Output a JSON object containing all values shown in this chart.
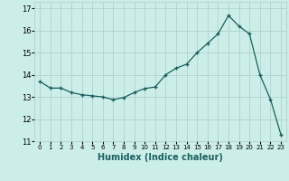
{
  "x": [
    0,
    1,
    2,
    3,
    4,
    5,
    6,
    7,
    8,
    9,
    10,
    11,
    12,
    13,
    14,
    15,
    16,
    17,
    18,
    19,
    20,
    21,
    22,
    23
  ],
  "y": [
    13.7,
    13.4,
    13.4,
    13.2,
    13.1,
    13.05,
    13.0,
    12.88,
    12.97,
    13.2,
    13.38,
    13.45,
    14.0,
    14.3,
    14.48,
    15.0,
    15.42,
    15.85,
    16.68,
    16.2,
    15.85,
    14.0,
    12.9,
    11.3
  ],
  "xlabel": "Humidex (Indice chaleur)",
  "ylabel": "",
  "xlim": [
    -0.5,
    23.5
  ],
  "ylim": [
    11,
    17.3
  ],
  "yticks": [
    11,
    12,
    13,
    14,
    15,
    16,
    17
  ],
  "xticks": [
    0,
    1,
    2,
    3,
    4,
    5,
    6,
    7,
    8,
    9,
    10,
    11,
    12,
    13,
    14,
    15,
    16,
    17,
    18,
    19,
    20,
    21,
    22,
    23
  ],
  "bg_color": "#cceee8",
  "line_color": "#1a5f5f",
  "marker_color": "#1a5f5f",
  "grid_color": "#aacccc",
  "grid_minor_color": "#c8e4e0"
}
